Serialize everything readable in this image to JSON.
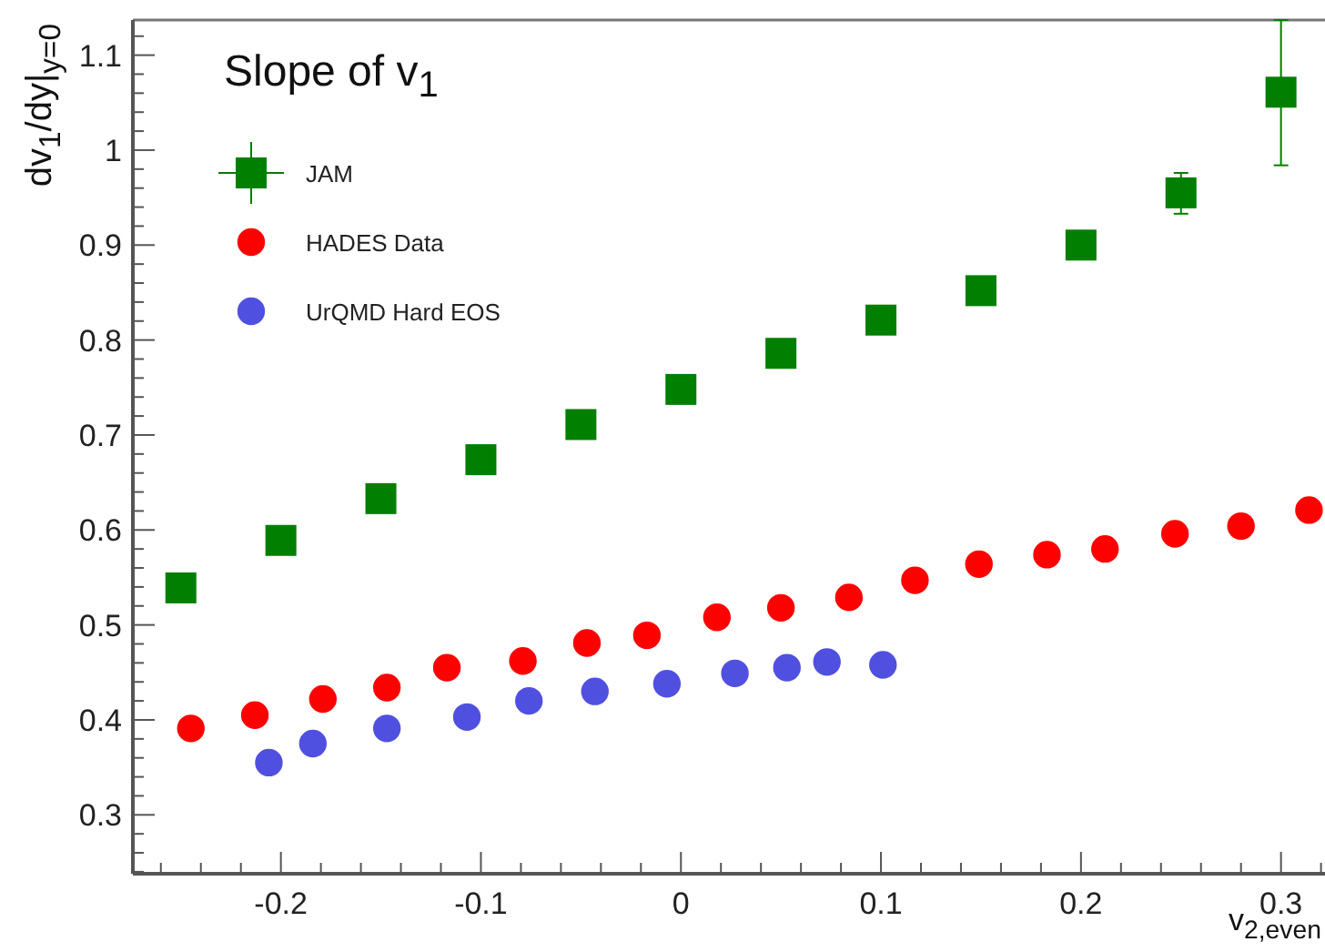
{
  "chart_data": {
    "type": "scatter",
    "title": "Slope of v$_{1}$",
    "xlabel": "v$_{2,even}$",
    "ylabel": "dv$_{1}$/dy|$_{y=0}$",
    "xlim": [
      -0.274,
      0.322
    ],
    "ylim": [
      0.238,
      1.137
    ],
    "xticks": [
      {
        "value": -0.26,
        "label": null
      },
      {
        "value": -0.24,
        "label": null
      },
      {
        "value": -0.22,
        "label": null
      },
      -0.2,
      {
        "value": -0.18,
        "label": null
      },
      {
        "value": -0.16,
        "label": null
      },
      {
        "value": -0.14,
        "label": null
      },
      {
        "value": -0.12,
        "label": null
      },
      -0.1,
      {
        "value": -0.08,
        "label": null
      },
      {
        "value": -0.06,
        "label": null
      },
      {
        "value": -0.04,
        "label": null
      },
      {
        "value": -0.02,
        "label": null
      },
      0,
      {
        "value": 0.02,
        "label": null
      },
      {
        "value": 0.04,
        "label": null
      },
      {
        "value": 0.06,
        "label": null
      },
      {
        "value": 0.08,
        "label": null
      },
      0.1,
      {
        "value": 0.12,
        "label": null
      },
      {
        "value": 0.14,
        "label": null
      },
      {
        "value": 0.16,
        "label": null
      },
      {
        "value": 0.18,
        "label": null
      },
      0.2,
      {
        "value": 0.22,
        "label": null
      },
      {
        "value": 0.24,
        "label": null
      },
      {
        "value": 0.26,
        "label": null
      },
      {
        "value": 0.28,
        "label": null
      },
      0.3,
      {
        "value": 0.32,
        "label": null
      }
    ],
    "yticks": [
      {
        "value": 0.24,
        "label": null
      },
      {
        "value": 0.26,
        "label": null
      },
      {
        "value": 0.28,
        "label": null
      },
      0.3,
      {
        "value": 0.32,
        "label": null
      },
      {
        "value": 0.34,
        "label": null
      },
      {
        "value": 0.36,
        "label": null
      },
      {
        "value": 0.38,
        "label": null
      },
      0.4,
      {
        "value": 0.42,
        "label": null
      },
      {
        "value": 0.44,
        "label": null
      },
      {
        "value": 0.46,
        "label": null
      },
      {
        "value": 0.48,
        "label": null
      },
      0.5,
      {
        "value": 0.52,
        "label": null
      },
      {
        "value": 0.54,
        "label": null
      },
      {
        "value": 0.56,
        "label": null
      },
      {
        "value": 0.58,
        "label": null
      },
      0.6,
      {
        "value": 0.62,
        "label": null
      },
      {
        "value": 0.64,
        "label": null
      },
      {
        "value": 0.66,
        "label": null
      },
      {
        "value": 0.68,
        "label": null
      },
      0.7,
      {
        "value": 0.72,
        "label": null
      },
      {
        "value": 0.74,
        "label": null
      },
      {
        "value": 0.76,
        "label": null
      },
      {
        "value": 0.78,
        "label": null
      },
      0.8,
      {
        "value": 0.82,
        "label": null
      },
      {
        "value": 0.84,
        "label": null
      },
      {
        "value": 0.86,
        "label": null
      },
      {
        "value": 0.88,
        "label": null
      },
      0.9,
      {
        "value": 0.92,
        "label": null
      },
      {
        "value": 0.94,
        "label": null
      },
      {
        "value": 0.96,
        "label": null
      },
      {
        "value": 0.98,
        "label": null
      },
      1,
      {
        "value": 1.02,
        "label": null
      },
      {
        "value": 1.04,
        "label": null
      },
      {
        "value": 1.06,
        "label": null
      },
      {
        "value": 1.08,
        "label": null
      },
      1.1,
      {
        "value": 1.12,
        "label": null
      }
    ],
    "grid": false,
    "legend": "top left",
    "series": [
      {
        "name": "JAM",
        "color": "#007f00",
        "marker": "square",
        "x": [
          -0.25,
          -0.2,
          -0.15,
          -0.1,
          -0.05,
          0,
          0.05,
          0.1,
          0.15,
          0.2,
          0.25,
          0.3
        ],
        "values": [
          0.539,
          0.589,
          0.633,
          0.674,
          0.711,
          0.748,
          0.786,
          0.821,
          0.852,
          0.9,
          0.955,
          1.061
        ],
        "errors": [
          null,
          null,
          null,
          null,
          null,
          null,
          null,
          null,
          null,
          null,
          [
            0.933,
            0.976
          ],
          [
            0.984,
            1.137
          ]
        ]
      },
      {
        "name": "HADES Data",
        "color": "#ff0000",
        "marker": "circle",
        "x": [
          -0.245,
          -0.213,
          -0.179,
          -0.147,
          -0.117,
          -0.079,
          -0.047,
          -0.017,
          0.018,
          0.05,
          0.084,
          0.117,
          0.149,
          0.183,
          0.212,
          0.247,
          0.28,
          0.314
        ],
        "values": [
          0.391,
          0.405,
          0.422,
          0.434,
          0.455,
          0.462,
          0.481,
          0.489,
          0.508,
          0.518,
          0.529,
          0.547,
          0.564,
          0.574,
          0.58,
          0.596,
          0.604,
          0.621
        ]
      },
      {
        "name": "UrQMD Hard EOS",
        "color": "#5050e0",
        "marker": "circle",
        "x": [
          -0.206,
          -0.184,
          -0.147,
          -0.107,
          -0.076,
          -0.043,
          -0.007,
          0.027,
          0.053,
          0.073,
          0.101
        ],
        "values": [
          0.355,
          0.375,
          0.391,
          0.403,
          0.42,
          0.43,
          0.438,
          0.449,
          0.455,
          0.461,
          0.458
        ]
      }
    ]
  }
}
